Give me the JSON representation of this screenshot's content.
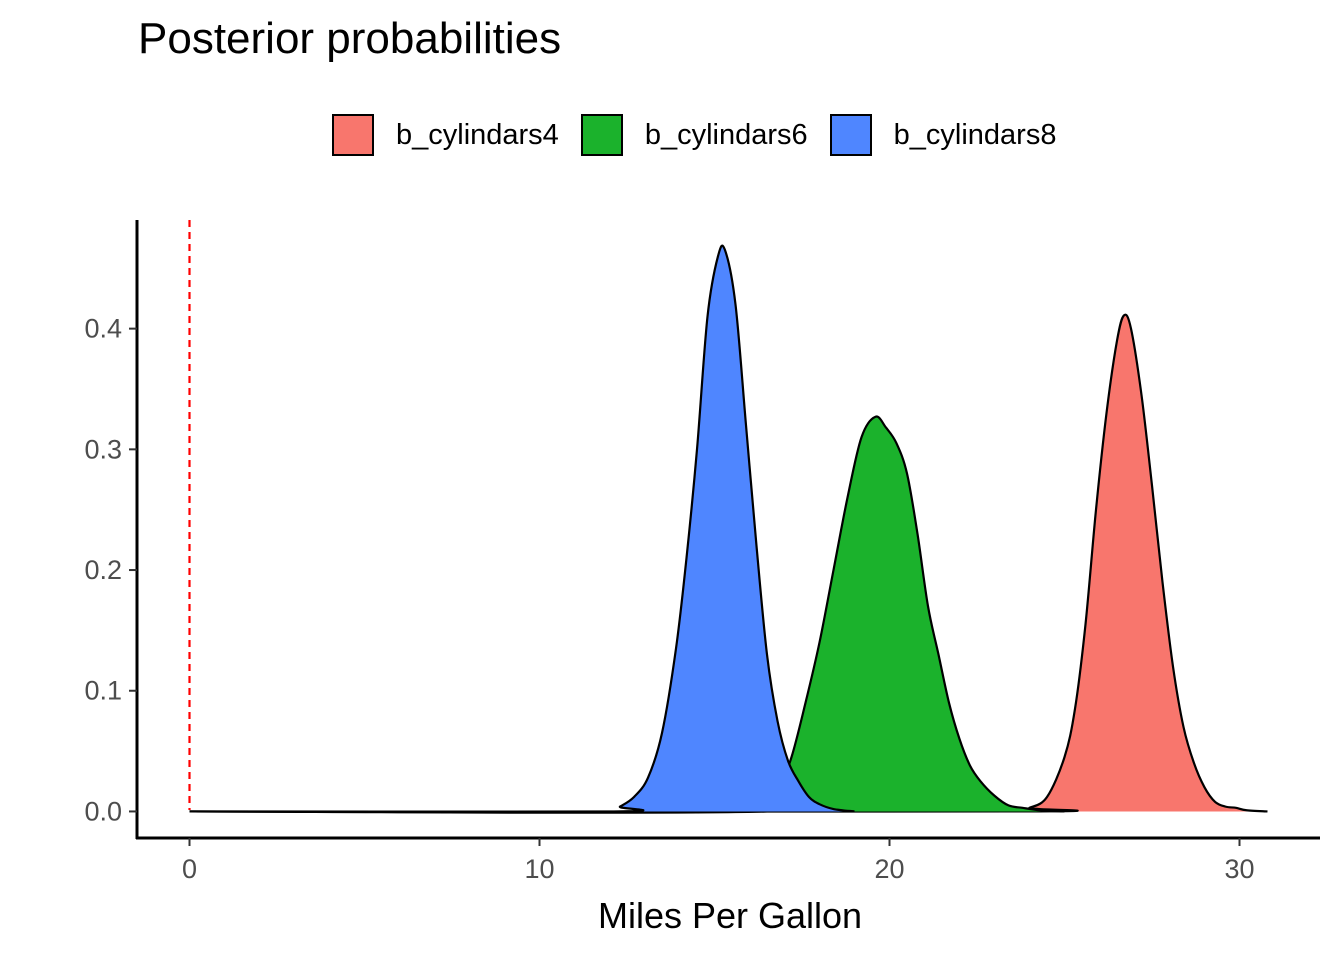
{
  "chart_data": {
    "type": "area",
    "title": "Posterior probabilities",
    "xlabel": "Miles Per Gallon",
    "ylabel": "",
    "xlim": [
      -1.5,
      32.3
    ],
    "ylim": [
      -0.022,
      0.49
    ],
    "x_ticks": [
      0,
      10,
      20,
      30
    ],
    "x_tick_labels": [
      "0",
      "10",
      "20",
      "30"
    ],
    "y_ticks": [
      0.0,
      0.1,
      0.2,
      0.3,
      0.4
    ],
    "y_tick_labels": [
      "0.0",
      "0.1",
      "0.2",
      "0.3",
      "0.4"
    ],
    "grid": false,
    "legend_position": "top",
    "reference_line": {
      "x": 0,
      "color": "#ff0000",
      "style": "dashed"
    },
    "series": [
      {
        "name": "b_cylindars4",
        "color": "#F8766D",
        "points": [
          [
            0,
            0
          ],
          [
            23.5,
            0
          ],
          [
            24.0,
            0.003
          ],
          [
            24.5,
            0.012
          ],
          [
            25.0,
            0.045
          ],
          [
            25.3,
            0.085
          ],
          [
            25.6,
            0.155
          ],
          [
            25.9,
            0.25
          ],
          [
            26.2,
            0.33
          ],
          [
            26.5,
            0.39
          ],
          [
            26.7,
            0.411
          ],
          [
            26.9,
            0.4
          ],
          [
            27.2,
            0.345
          ],
          [
            27.5,
            0.27
          ],
          [
            27.8,
            0.19
          ],
          [
            28.1,
            0.12
          ],
          [
            28.4,
            0.07
          ],
          [
            28.7,
            0.04
          ],
          [
            29.0,
            0.02
          ],
          [
            29.3,
            0.008
          ],
          [
            29.6,
            0.004
          ],
          [
            29.9,
            0.003
          ],
          [
            30.2,
            0.001
          ],
          [
            30.8,
            0
          ]
        ]
      },
      {
        "name": "b_cylindars6",
        "color": "#1BB22C",
        "points": [
          [
            0,
            0
          ],
          [
            16.5,
            0
          ],
          [
            16.8,
            0.015
          ],
          [
            17.2,
            0.045
          ],
          [
            17.6,
            0.09
          ],
          [
            18.0,
            0.14
          ],
          [
            18.4,
            0.2
          ],
          [
            18.8,
            0.26
          ],
          [
            19.2,
            0.31
          ],
          [
            19.6,
            0.327
          ],
          [
            19.9,
            0.318
          ],
          [
            20.2,
            0.305
          ],
          [
            20.5,
            0.28
          ],
          [
            20.8,
            0.23
          ],
          [
            21.1,
            0.17
          ],
          [
            21.4,
            0.13
          ],
          [
            21.7,
            0.09
          ],
          [
            22.0,
            0.06
          ],
          [
            22.3,
            0.038
          ],
          [
            22.6,
            0.025
          ],
          [
            23.0,
            0.013
          ],
          [
            23.4,
            0.005
          ],
          [
            23.8,
            0.003
          ],
          [
            24.3,
            0.001
          ],
          [
            25.0,
            0
          ]
        ]
      },
      {
        "name": "b_cylindars8",
        "color": "#4F86FF",
        "points": [
          [
            0,
            0
          ],
          [
            12.0,
            0
          ],
          [
            12.3,
            0.004
          ],
          [
            12.7,
            0.012
          ],
          [
            13.1,
            0.028
          ],
          [
            13.5,
            0.065
          ],
          [
            13.9,
            0.135
          ],
          [
            14.2,
            0.21
          ],
          [
            14.5,
            0.3
          ],
          [
            14.8,
            0.41
          ],
          [
            15.1,
            0.46
          ],
          [
            15.3,
            0.465
          ],
          [
            15.6,
            0.42
          ],
          [
            15.9,
            0.32
          ],
          [
            16.2,
            0.22
          ],
          [
            16.5,
            0.13
          ],
          [
            16.8,
            0.075
          ],
          [
            17.1,
            0.042
          ],
          [
            17.4,
            0.025
          ],
          [
            17.7,
            0.012
          ],
          [
            18.0,
            0.006
          ],
          [
            18.4,
            0.002
          ],
          [
            19.0,
            0
          ]
        ]
      }
    ]
  }
}
